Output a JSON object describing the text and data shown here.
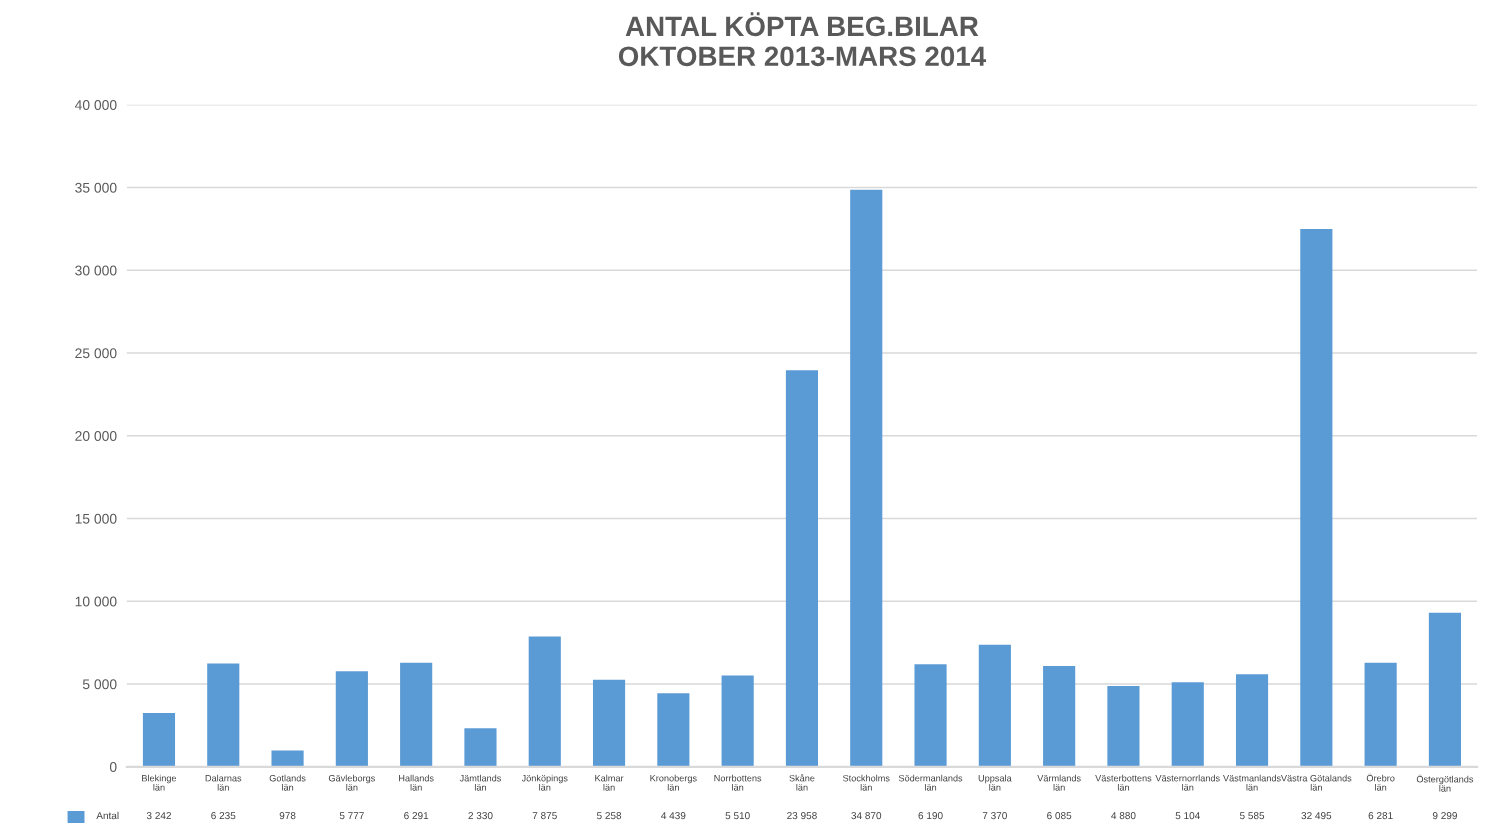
{
  "chart_data": {
    "type": "bar",
    "title": "ANTAL KÖPTA BEG.BILAR\nOKTOBER 2013-MARS 2014",
    "categories": [
      "Blekinge län",
      "Dalarnas län",
      "Gotlands län",
      "Gävleborgs län",
      "Hallands län",
      "Jämtlands län",
      "Jönköpings län",
      "Kalmar län",
      "Kronobergs län",
      "Norrbottens län",
      "Skåne län",
      "Stockholms län",
      "Södermanlands län",
      "Uppsala län",
      "Värmlands län",
      "Västerbottens län",
      "Västernorrlands län",
      "Västmanlands län",
      "Västra Götalands län",
      "Örebro län",
      "Östergötlands län"
    ],
    "series": [
      {
        "name": "Antal",
        "color": "#5b9bd5",
        "values": [
          3242,
          6235,
          978,
          5777,
          6291,
          2330,
          7875,
          5258,
          4439,
          5510,
          23958,
          34870,
          6190,
          7370,
          6085,
          4880,
          5104,
          5585,
          32495,
          6281,
          9299
        ],
        "value_labels": [
          "3 242",
          "6 235",
          "978",
          "5 777",
          "6 291",
          "2 330",
          "7 875",
          "5 258",
          "4 439",
          "5 510",
          "23 958",
          "34 870",
          "6 190",
          "7 370",
          "6 085",
          "4 880",
          "5 104",
          "5 585",
          "32 495",
          "6 281",
          "9 299"
        ]
      }
    ],
    "ylim": [
      0,
      40000
    ],
    "yticks": [
      0,
      {
        "value": 5000,
        "label": "5 000"
      },
      {
        "value": 10000,
        "label": "10 000"
      },
      {
        "value": 15000,
        "label": "15 000"
      },
      {
        "value": 20000,
        "label": "20 000"
      },
      {
        "value": 25000,
        "label": "25 000"
      },
      {
        "value": 30000,
        "label": "30 000"
      },
      {
        "value": 35000,
        "label": "35 000"
      },
      {
        "value": 40000,
        "label": "40 000"
      }
    ],
    "grid": "y"
  }
}
